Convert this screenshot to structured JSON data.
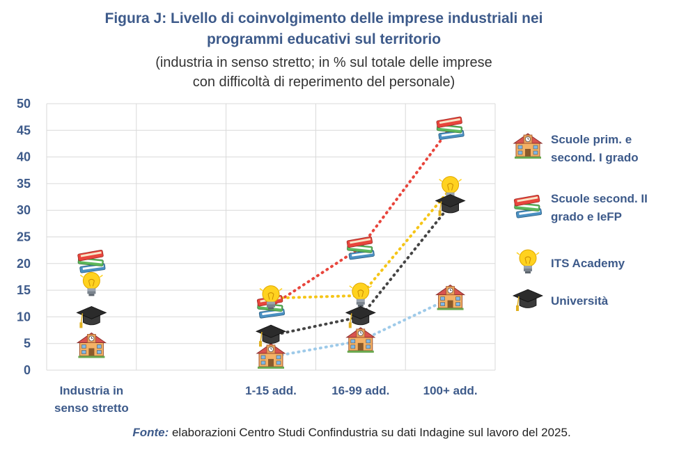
{
  "header": {
    "title_line1": "Figura J: Livello di coinvolgimento delle imprese industriali nei",
    "title_line2": "programmi educativi sul territorio",
    "subtitle_line1": "(industria in senso stretto; in % sul totale delle imprese",
    "subtitle_line2": "con difficoltà di reperimento del personale)"
  },
  "source": {
    "label": "Fonte:",
    "text": " elaborazioni Centro Studi Confindustria su dati Indagine sul lavoro del 2025."
  },
  "legend": {
    "items": [
      {
        "label_line1": "Scuole prim. e",
        "label_line2": "second. I grado",
        "icon": "school-building-icon"
      },
      {
        "label_line1": "Scuole second. II",
        "label_line2": "grado e IeFP",
        "icon": "books-icon"
      },
      {
        "label_line1": "ITS Academy",
        "label_line2": "",
        "icon": "lightbulb-icon"
      },
      {
        "label_line1": "Università",
        "label_line2": "",
        "icon": "graduation-cap-icon"
      }
    ]
  },
  "chart_data": {
    "type": "scatter",
    "categories": [
      "Industria in\nsenso stretto",
      "",
      "1-15 add.",
      "16-99 add.",
      "100+ add."
    ],
    "ylim": [
      0,
      50
    ],
    "yticks": [
      0,
      5,
      10,
      15,
      20,
      25,
      30,
      35,
      40,
      45,
      50
    ],
    "grid": true,
    "legend_position": "right",
    "series": [
      {
        "name": "Scuole prim. e second. I grado",
        "icon": "school-building-icon",
        "color": "#9ecae9",
        "values": [
          4.5,
          null,
          2.5,
          5.5,
          13.5
        ],
        "connect_from": 2
      },
      {
        "name": "Scuole second. II grado e IeFP",
        "icon": "books-icon",
        "color": "#e8453c",
        "values": [
          20.5,
          null,
          12,
          23,
          45.5
        ],
        "connect_from": 2
      },
      {
        "name": "ITS Academy",
        "icon": "lightbulb-icon",
        "color": "#f5c518",
        "values": [
          16,
          null,
          13.5,
          14,
          34
        ],
        "connect_from": 2
      },
      {
        "name": "Università",
        "icon": "graduation-cap-icon",
        "color": "#444444",
        "values": [
          10,
          null,
          6.5,
          10,
          31
        ],
        "connect_from": 2
      }
    ]
  }
}
